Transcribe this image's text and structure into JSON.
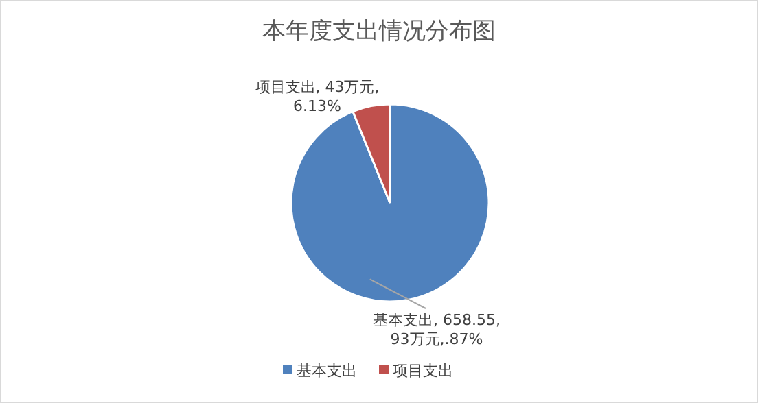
{
  "chart_data": {
    "type": "pie",
    "title": "本年度支出情况分布图",
    "categories": [
      "基本支出",
      "项目支出"
    ],
    "values": [
      658.55,
      43
    ],
    "colors": [
      "#4f81bd",
      "#c0504d"
    ],
    "value_labels": [
      "基本支出, 658.55, 93万元,.87%",
      "项目支出, 43万元, 6.13%"
    ],
    "legend": "bottom"
  }
}
